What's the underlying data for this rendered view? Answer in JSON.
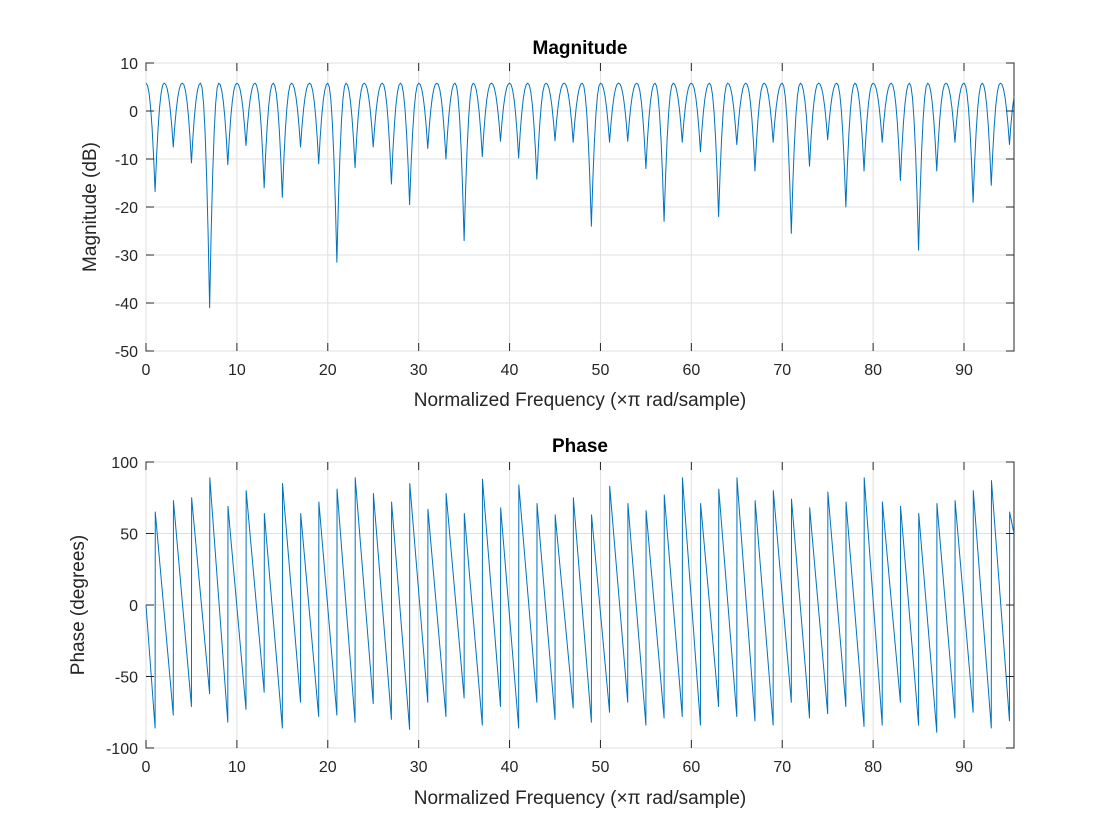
{
  "colors": {
    "series": "#0072bd",
    "axis": "#262626",
    "grid": "#dfdfdf"
  },
  "chart_data": [
    {
      "type": "line",
      "title": "Magnitude",
      "xlabel": "Normalized Frequency  (×π rad/sample)",
      "ylabel": "Magnitude (dB)",
      "xlim": [
        0,
        95.5
      ],
      "ylim": [
        -50,
        10
      ],
      "xticks": [
        0,
        10,
        20,
        30,
        40,
        50,
        60,
        70,
        80,
        90
      ],
      "yticks": [
        -50,
        -40,
        -30,
        -20,
        -10,
        0,
        10
      ],
      "grid": true,
      "series": [
        {
          "peaks_db": 5.8,
          "peak_spacing": 2,
          "dips": [
            [
              1,
              -16.8
            ],
            [
              3,
              -7.5
            ],
            [
              5,
              -10.8
            ],
            [
              7,
              -41
            ],
            [
              9,
              -11.2
            ],
            [
              11,
              -7.2
            ],
            [
              13,
              -16
            ],
            [
              15,
              -18
            ],
            [
              17,
              -7.5
            ],
            [
              19,
              -11
            ],
            [
              21,
              -31.5
            ],
            [
              23,
              -11.8
            ],
            [
              25,
              -7.5
            ],
            [
              27,
              -15.2
            ],
            [
              29,
              -19.5
            ],
            [
              31,
              -7.8
            ],
            [
              33,
              -10
            ],
            [
              35,
              -27
            ],
            [
              37,
              -9.5
            ],
            [
              39,
              -6.3
            ],
            [
              41,
              -9.8
            ],
            [
              43,
              -14.2
            ],
            [
              45,
              -6.2
            ],
            [
              47,
              -6.5
            ],
            [
              49,
              -24
            ],
            [
              51,
              -6.5
            ],
            [
              53,
              -6.3
            ],
            [
              55,
              -12
            ],
            [
              57,
              -23
            ],
            [
              59,
              -6.5
            ],
            [
              61,
              -8.5
            ],
            [
              63,
              -22
            ],
            [
              65,
              -7
            ],
            [
              67,
              -12.5
            ],
            [
              69,
              -6.5
            ],
            [
              71,
              -25.5
            ],
            [
              73,
              -11.5
            ],
            [
              75,
              -6
            ],
            [
              77,
              -20
            ],
            [
              79,
              -12.5
            ],
            [
              81,
              -6.5
            ],
            [
              83,
              -14.5
            ],
            [
              85,
              -29
            ],
            [
              87,
              -12.5
            ],
            [
              89,
              -6.5
            ],
            [
              91,
              -19
            ],
            [
              93,
              -15.5
            ],
            [
              95,
              -7
            ]
          ]
        }
      ]
    },
    {
      "type": "line",
      "title": "Phase",
      "xlabel": "Normalized Frequency  (×π rad/sample)",
      "ylabel": "Phase (degrees)",
      "xlim": [
        0,
        95.5
      ],
      "ylim": [
        -100,
        100
      ],
      "xticks": [
        0,
        10,
        20,
        30,
        40,
        50,
        60,
        70,
        80,
        90
      ],
      "yticks": [
        -100,
        -50,
        0,
        50,
        100
      ],
      "grid": true,
      "series": [
        {
          "start_value": 0,
          "cycle": 2,
          "peaks": [
            [
              1,
              65
            ],
            [
              3,
              73
            ],
            [
              5,
              75
            ],
            [
              7,
              89
            ],
            [
              9,
              69
            ],
            [
              11,
              80
            ],
            [
              13,
              64
            ],
            [
              15,
              85
            ],
            [
              17,
              64
            ],
            [
              19,
              72
            ],
            [
              21,
              81
            ],
            [
              23,
              89
            ],
            [
              25,
              78
            ],
            [
              27,
              72
            ],
            [
              29,
              85
            ],
            [
              31,
              67
            ],
            [
              33,
              78
            ],
            [
              35,
              64
            ],
            [
              37,
              88
            ],
            [
              39,
              68
            ],
            [
              41,
              84
            ],
            [
              43,
              71
            ],
            [
              45,
              63
            ],
            [
              47,
              75
            ],
            [
              49,
              63
            ],
            [
              51,
              83
            ],
            [
              53,
              71
            ],
            [
              55,
              66
            ],
            [
              57,
              77
            ],
            [
              59,
              89
            ],
            [
              61,
              71
            ],
            [
              63,
              81
            ],
            [
              65,
              89
            ],
            [
              67,
              73
            ],
            [
              69,
              80
            ],
            [
              71,
              74
            ],
            [
              73,
              68
            ],
            [
              75,
              79
            ],
            [
              77,
              72
            ],
            [
              79,
              89
            ],
            [
              81,
              72
            ],
            [
              83,
              69
            ],
            [
              85,
              64
            ],
            [
              87,
              71
            ],
            [
              89,
              73
            ],
            [
              91,
              80
            ],
            [
              93,
              87
            ],
            [
              95,
              65
            ]
          ],
          "troughs": [
            [
              1,
              -86
            ],
            [
              3,
              -77
            ],
            [
              5,
              -71
            ],
            [
              7,
              -62
            ],
            [
              9,
              -82
            ],
            [
              11,
              -73
            ],
            [
              13,
              -61
            ],
            [
              15,
              -86
            ],
            [
              17,
              -68
            ],
            [
              19,
              -78
            ],
            [
              21,
              -77
            ],
            [
              23,
              -82
            ],
            [
              25,
              -69
            ],
            [
              27,
              -80
            ],
            [
              29,
              -87
            ],
            [
              31,
              -68
            ],
            [
              33,
              -78
            ],
            [
              35,
              -65
            ],
            [
              37,
              -84
            ],
            [
              39,
              -71
            ],
            [
              41,
              -86
            ],
            [
              43,
              -68
            ],
            [
              45,
              -80
            ],
            [
              47,
              -72
            ],
            [
              49,
              -82
            ],
            [
              51,
              -75
            ],
            [
              53,
              -68
            ],
            [
              55,
              -84
            ],
            [
              57,
              -79
            ],
            [
              59,
              -78
            ],
            [
              61,
              -84
            ],
            [
              63,
              -71
            ],
            [
              65,
              -78
            ],
            [
              67,
              -81
            ],
            [
              69,
              -84
            ],
            [
              71,
              -68
            ],
            [
              73,
              -79
            ],
            [
              75,
              -76
            ],
            [
              77,
              -71
            ],
            [
              79,
              -85
            ],
            [
              81,
              -84
            ],
            [
              83,
              -68
            ],
            [
              85,
              -84
            ],
            [
              87,
              -89
            ],
            [
              89,
              -79
            ],
            [
              91,
              -75
            ],
            [
              93,
              -86
            ],
            [
              95,
              -81
            ]
          ],
          "end_value": 50
        }
      ]
    }
  ]
}
